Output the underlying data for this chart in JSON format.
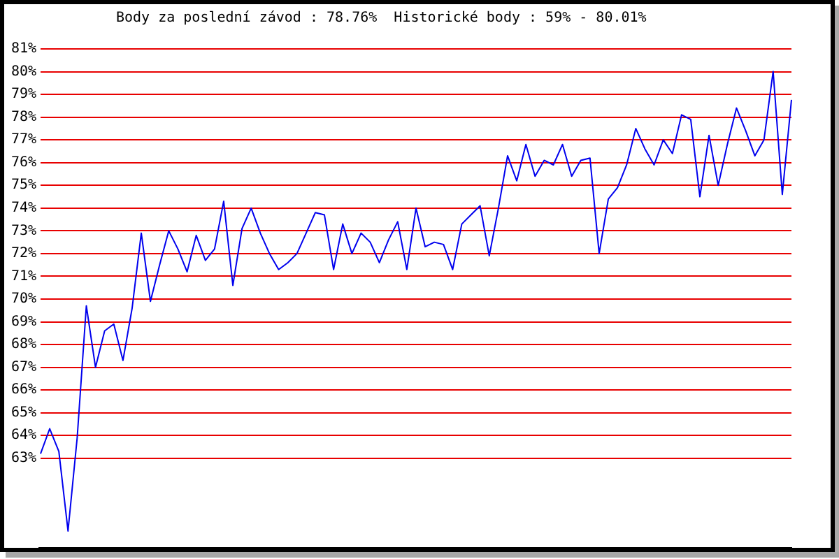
{
  "chart_data": {
    "type": "line",
    "title": "Body za poslední závod : 78.76%  Historické body : 59% - 80.01%",
    "categories": [
      null,
      null,
      null,
      null,
      null,
      null,
      null,
      null,
      null,
      null,
      null,
      null,
      null,
      null,
      null,
      null,
      null,
      null,
      null,
      null,
      null,
      null,
      null,
      null,
      null,
      null,
      null,
      null,
      null,
      null,
      null,
      null,
      null,
      null,
      null,
      null,
      null,
      null,
      null,
      null,
      null,
      null,
      null,
      null,
      null,
      null,
      null,
      null,
      null,
      null,
      null,
      null,
      null,
      null,
      null,
      null,
      null,
      null,
      null,
      null,
      null,
      null,
      null,
      null,
      null,
      null,
      null,
      null,
      null,
      null,
      null,
      null,
      null,
      null,
      null,
      null,
      null,
      null,
      null,
      null,
      null,
      null,
      null
    ],
    "values": [
      63.2,
      64.3,
      63.3,
      59.8,
      63.9,
      69.7,
      67.0,
      68.6,
      68.9,
      67.3,
      69.6,
      72.9,
      69.9,
      71.5,
      73.0,
      72.2,
      71.2,
      72.8,
      71.7,
      72.2,
      74.3,
      70.6,
      73.1,
      74.0,
      72.9,
      72.0,
      71.3,
      71.6,
      72.0,
      72.9,
      73.8,
      73.7,
      71.3,
      73.3,
      72.0,
      72.9,
      72.5,
      71.6,
      72.6,
      73.4,
      71.3,
      74.0,
      72.3,
      72.5,
      72.4,
      71.3,
      73.3,
      73.7,
      74.1,
      71.9,
      74.0,
      76.3,
      75.2,
      76.8,
      75.4,
      76.1,
      75.9,
      76.8,
      75.4,
      76.1,
      76.2,
      72.0,
      74.4,
      74.9,
      75.9,
      77.5,
      76.6,
      75.9,
      77.0,
      76.4,
      78.1,
      77.9,
      74.5,
      77.2,
      75.0,
      76.8,
      78.4,
      77.4,
      76.3,
      77.0,
      80.01,
      74.6,
      78.76
    ],
    "color": "#0000ee",
    "ylim": [
      59,
      81
    ],
    "yticks": [
      {
        "value": 63,
        "label": "63%"
      },
      {
        "value": 64,
        "label": "64%"
      },
      {
        "value": 65,
        "label": "65%"
      },
      {
        "value": 66,
        "label": "66%"
      },
      {
        "value": 67,
        "label": "67%"
      },
      {
        "value": 68,
        "label": "68%"
      },
      {
        "value": 69,
        "label": "69%"
      },
      {
        "value": 70,
        "label": "70%"
      },
      {
        "value": 71,
        "label": "71%"
      },
      {
        "value": 72,
        "label": "72%"
      },
      {
        "value": 73,
        "label": "73%"
      },
      {
        "value": 74,
        "label": "74%"
      },
      {
        "value": 75,
        "label": "75%"
      },
      {
        "value": 76,
        "label": "76%"
      },
      {
        "value": 77,
        "label": "77%"
      },
      {
        "value": 78,
        "label": "78%"
      },
      {
        "value": 79,
        "label": "79%"
      },
      {
        "value": 80,
        "label": "80%"
      },
      {
        "value": 81,
        "label": "81%"
      }
    ],
    "grid": "y",
    "tick_labels": "y"
  }
}
